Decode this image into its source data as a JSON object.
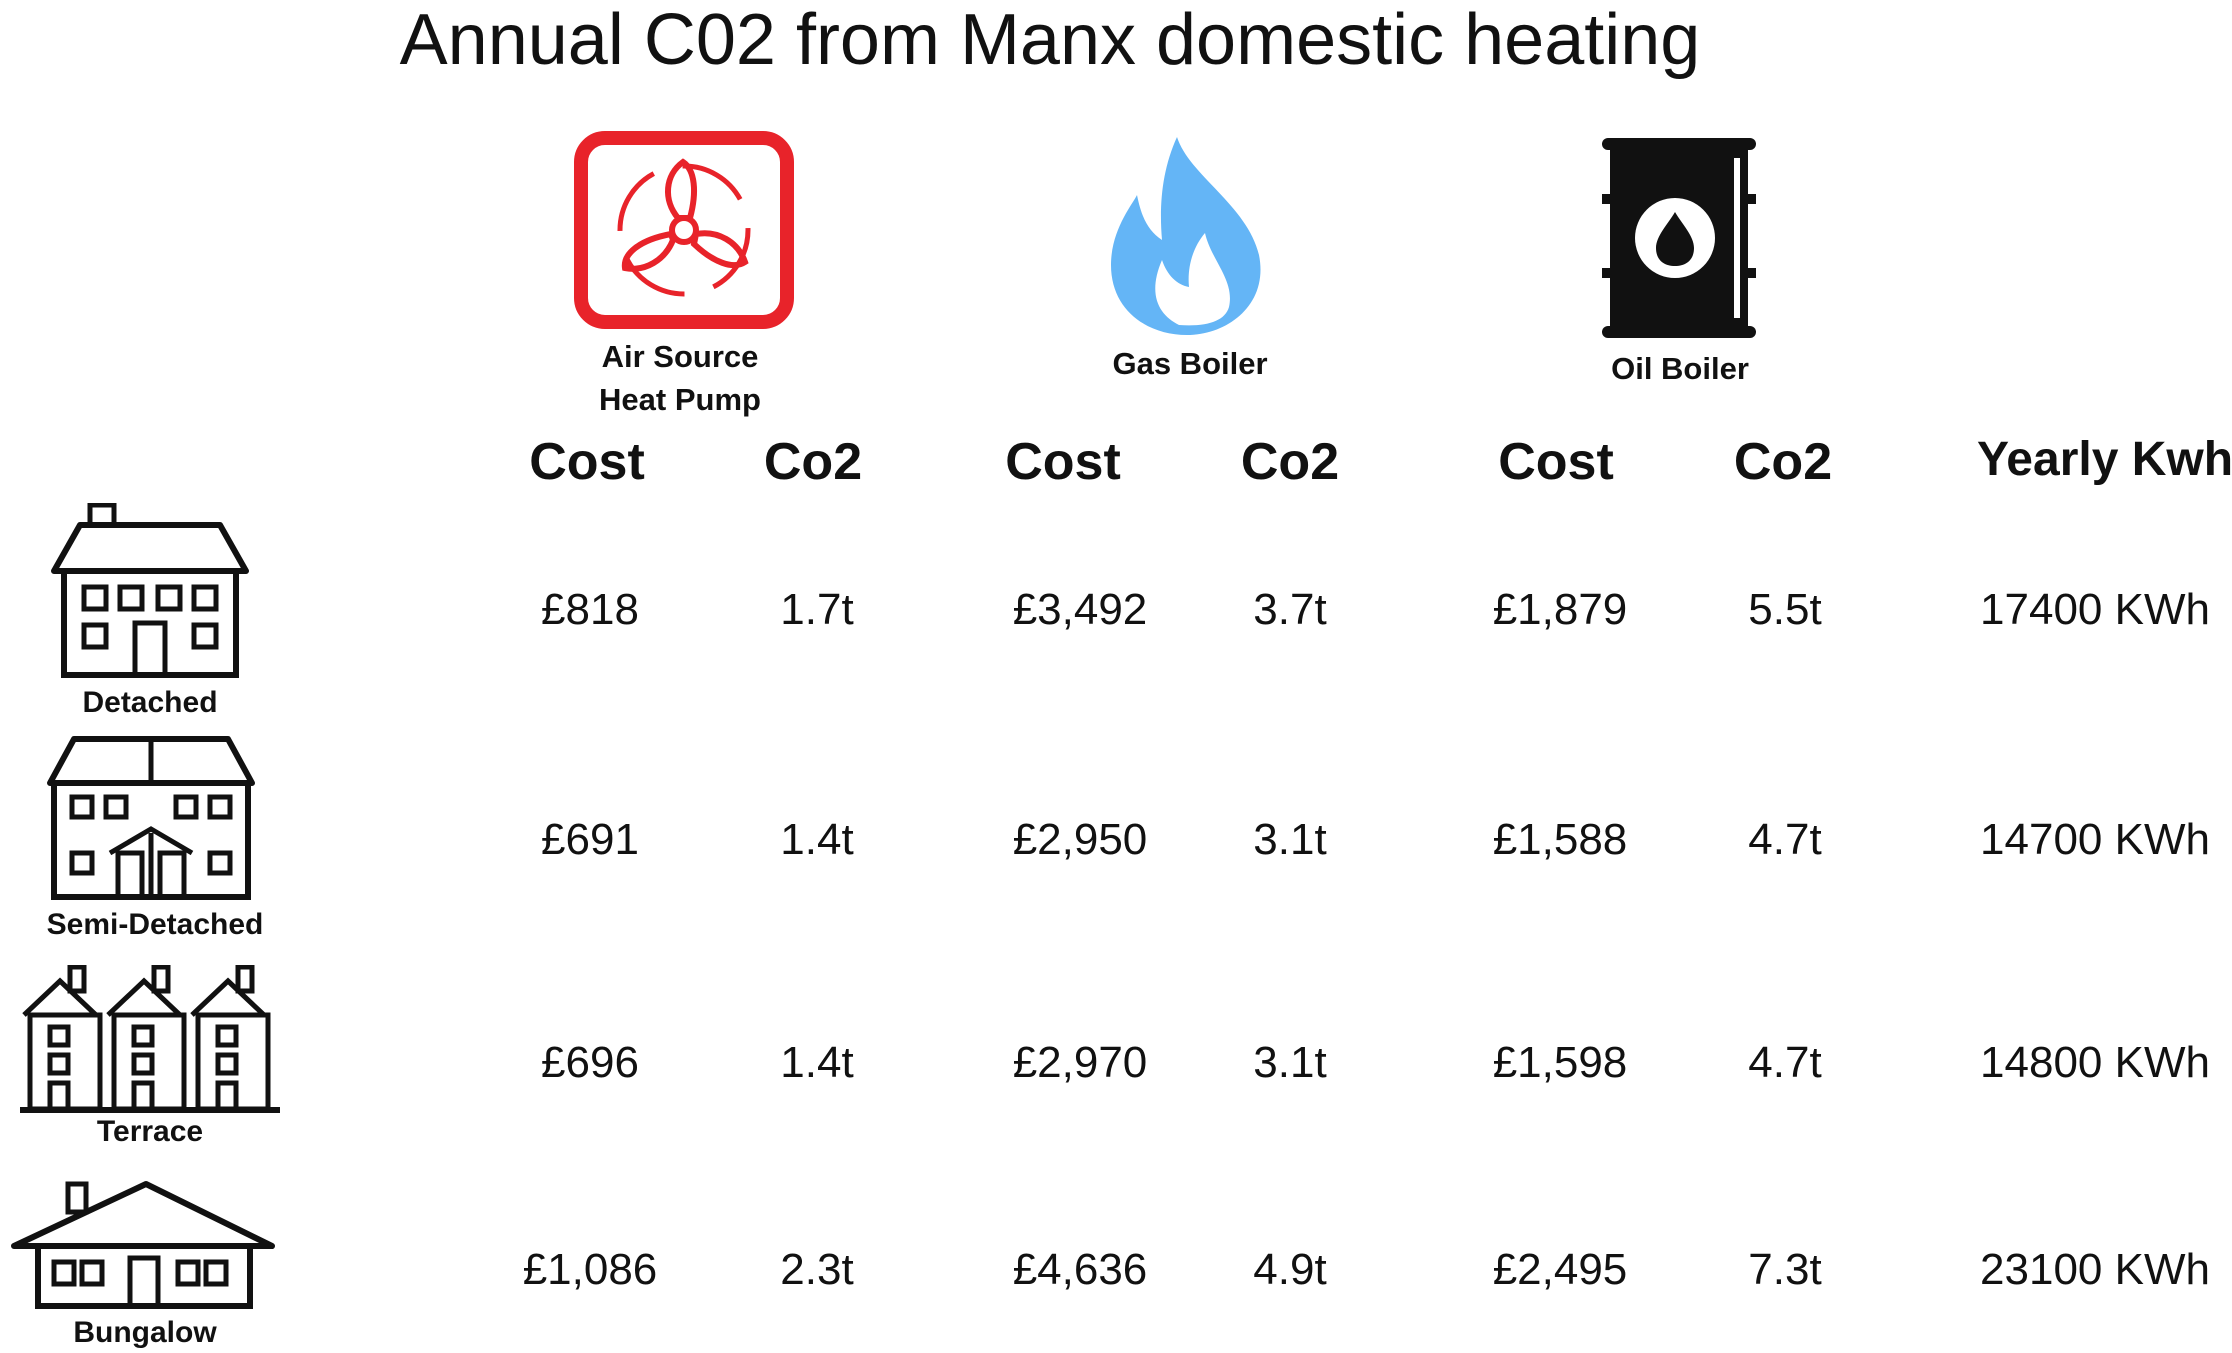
{
  "title": "Annual C02 from Manx domestic heating",
  "systems": [
    {
      "label_line1": "Air Source",
      "label_line2": "Heat Pump",
      "icon": "heat-pump-fan-icon",
      "color": "#e8232a"
    },
    {
      "label": "Gas Boiler",
      "icon": "gas-flame-icon",
      "color": "#64b5f6"
    },
    {
      "label": "Oil Boiler",
      "icon": "oil-barrel-icon",
      "color": "#111111"
    }
  ],
  "column_headers": {
    "cost": "Cost",
    "co2": "Co2",
    "yearly_kwh": "Yearly Kwh"
  },
  "rows": [
    {
      "house": "Detached",
      "icon": "detached-house-icon",
      "ashp_cost": "£818",
      "ashp_co2": "1.7t",
      "gas_cost": "£3,492",
      "gas_co2": "3.7t",
      "oil_cost": "£1,879",
      "oil_co2": "5.5t",
      "kwh": "17400 KWh"
    },
    {
      "house": "Semi-Detached",
      "icon": "semi-detached-house-icon",
      "ashp_cost": "£691",
      "ashp_co2": "1.4t",
      "gas_cost": "£2,950",
      "gas_co2": "3.1t",
      "oil_cost": "£1,588",
      "oil_co2": "4.7t",
      "kwh": "14700 KWh"
    },
    {
      "house": "Terrace",
      "icon": "terrace-house-icon",
      "ashp_cost": "£696",
      "ashp_co2": "1.4t",
      "gas_cost": "£2,970",
      "gas_co2": "3.1t",
      "oil_cost": "£1,598",
      "oil_co2": "4.7t",
      "kwh": "14800 KWh"
    },
    {
      "house": "Bungalow",
      "icon": "bungalow-icon",
      "ashp_cost": "£1,086",
      "ashp_co2": "2.3t",
      "gas_cost": "£4,636",
      "gas_co2": "4.9t",
      "oil_cost": "£2,495",
      "oil_co2": "7.3t",
      "kwh": "23100 KWh"
    }
  ]
}
